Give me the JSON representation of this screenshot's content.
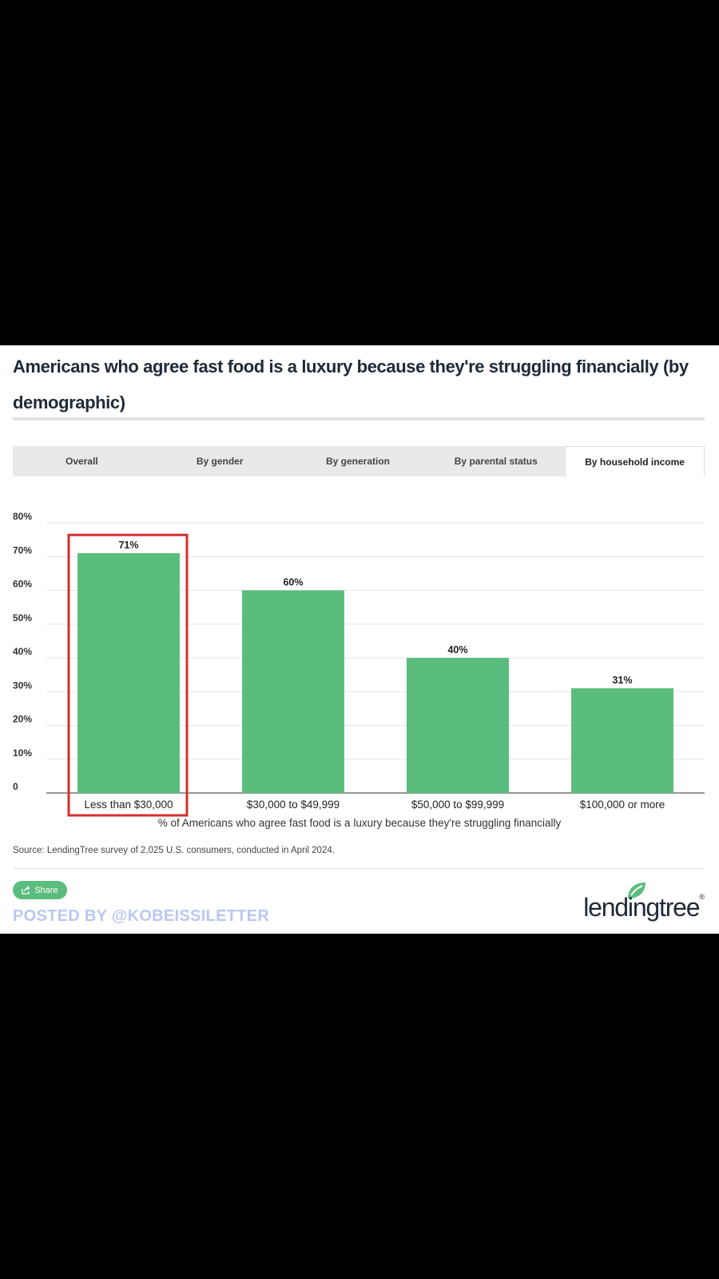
{
  "card": {
    "title": "Americans who agree fast food is a luxury because they're struggling financially (by demographic)",
    "source": "Source: LendingTree survey of 2,025 U.S. consumers, conducted in April 2024.",
    "share_label": "Share",
    "posted_by": "POSTED BY @KOBEISSILETTER",
    "logo_text": "lendingtree",
    "logo_reg": "®"
  },
  "tabs": [
    {
      "label": "Overall"
    },
    {
      "label": "By gender"
    },
    {
      "label": "By generation"
    },
    {
      "label": "By parental status"
    },
    {
      "label": "By household income"
    }
  ],
  "colors": {
    "bar": "#5abd7e",
    "highlight": "#d62e2e",
    "grid": "#e6e6e6",
    "axis": "#777777"
  },
  "chart_data": {
    "type": "bar",
    "categories": [
      "Less than $30,000",
      "$30,000 to $49,999",
      "$50,000 to $99,999",
      "$100,000 or more"
    ],
    "values": [
      71,
      60,
      40,
      31
    ],
    "data_labels": [
      "71%",
      "60%",
      "40%",
      "31%"
    ],
    "yticks": [
      0,
      10,
      20,
      30,
      40,
      50,
      60,
      70,
      80
    ],
    "ytick_labels": [
      "0",
      "10%",
      "20%",
      "30%",
      "40%",
      "50%",
      "60%",
      "70%",
      "80%"
    ],
    "ylim": [
      0,
      80
    ],
    "xlabel": "% of Americans who agree fast food is a luxury because they're struggling financially",
    "ylabel": "",
    "highlighted_category": "Less than $30,000",
    "grid": true
  }
}
